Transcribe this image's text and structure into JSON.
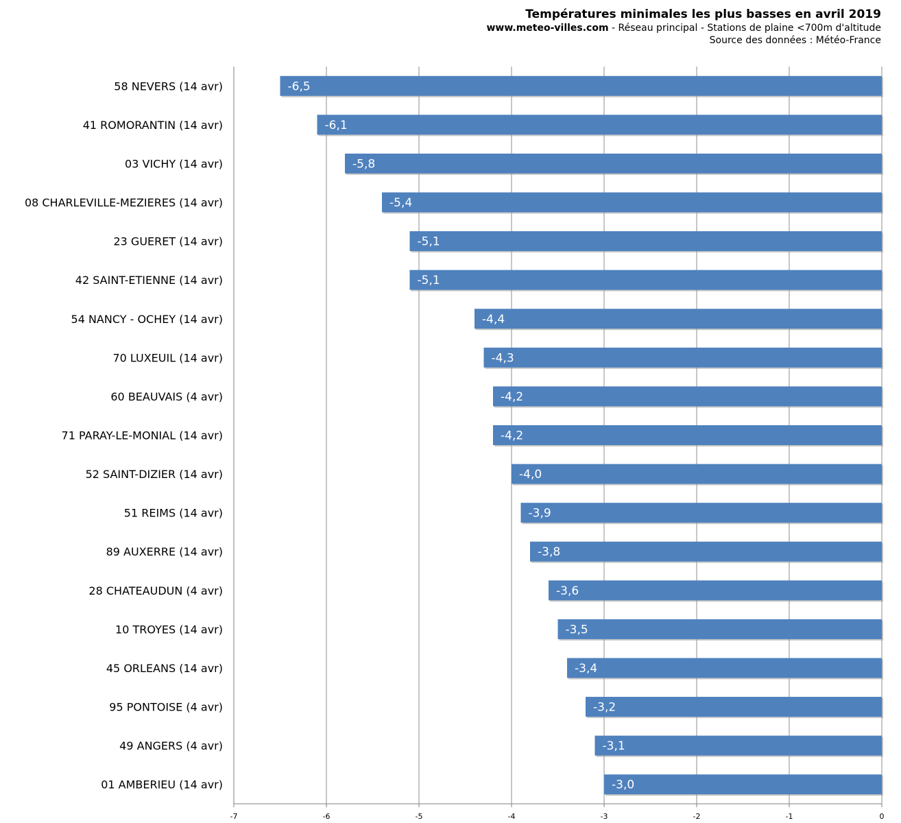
{
  "header": {
    "title": "Températures minimales les plus basses en avril 2019",
    "site": "www.meteo-villes.com",
    "subtitle_rest": " - Réseau principal - Stations de plaine <700m d'altitude",
    "source": "Source des données : Météo-France"
  },
  "chart_data": {
    "type": "bar",
    "orientation": "horizontal",
    "title": "Températures minimales les plus basses en avril 2019",
    "categories": [
      "58 NEVERS (14 avr)",
      "41 ROMORANTIN (14 avr)",
      "03 VICHY (14 avr)",
      "08 CHARLEVILLE-MEZIERES (14 avr)",
      "23 GUERET (14 avr)",
      "42 SAINT-ETIENNE (14 avr)",
      "54 NANCY - OCHEY (14 avr)",
      "70 LUXEUIL (14 avr)",
      "60 BEAUVAIS (4 avr)",
      "71 PARAY-LE-MONIAL (14 avr)",
      "52 SAINT-DIZIER (14 avr)",
      "51 REIMS (14 avr)",
      "89 AUXERRE (14 avr)",
      "28 CHATEAUDUN (4 avr)",
      "10 TROYES (14 avr)",
      "45 ORLEANS (14 avr)",
      "95 PONTOISE (4 avr)",
      "49 ANGERS (4 avr)",
      "01 AMBERIEU (14 avr)"
    ],
    "values": [
      -6.5,
      -6.1,
      -5.8,
      -5.4,
      -5.1,
      -5.1,
      -4.4,
      -4.3,
      -4.2,
      -4.2,
      -4.0,
      -3.9,
      -3.8,
      -3.6,
      -3.5,
      -3.4,
      -3.2,
      -3.1,
      -3.0
    ],
    "value_labels": [
      "-6,5",
      "-6,1",
      "-5,8",
      "-5,4",
      "-5,1",
      "-5,1",
      "-4,4",
      "-4,3",
      "-4,2",
      "-4,2",
      "-4,0",
      "-3,9",
      "-3,8",
      "-3,6",
      "-3,5",
      "-3,4",
      "-3,2",
      "-3,1",
      "-3,0"
    ],
    "xlim": [
      -7,
      0
    ],
    "x_ticks": [
      -7,
      -6,
      -5,
      -4,
      -3,
      -2,
      -1,
      0
    ],
    "x_tick_labels": [
      "-7",
      "-6",
      "-5",
      "-4",
      "-3",
      "-2",
      "-1",
      "0"
    ],
    "grid": true,
    "bar_color": "#4f81bd",
    "grid_color": "#8c8c8c"
  }
}
